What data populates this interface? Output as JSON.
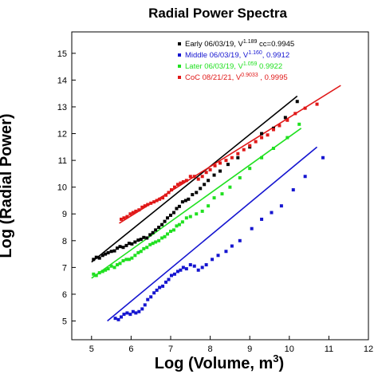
{
  "chart_data": {
    "type": "scatter",
    "title": "Radial Power Spectra",
    "xlabel": "Log (Volume, m",
    "xlabel_sup": "3",
    "xlabel_end": ")",
    "ylabel": "Log (Radial Power)",
    "xlim": [
      4.5,
      12
    ],
    "ylim": [
      4.3,
      15.8
    ],
    "xticks": [
      5,
      6,
      7,
      8,
      9,
      10,
      11,
      12
    ],
    "yticks": [
      5,
      6,
      7,
      8,
      9,
      10,
      11,
      12,
      13,
      14,
      15
    ],
    "grid": false,
    "legend_position": "top-right",
    "series": [
      {
        "name": "Early 06/03/19, V",
        "exponent": "1.189",
        "stat": "  cc=0.9945",
        "color": "#000000",
        "fit": [
          [
            5.0,
            7.2
          ],
          [
            10.2,
            13.4
          ]
        ],
        "points": [
          [
            5.05,
            7.3
          ],
          [
            5.12,
            7.38
          ],
          [
            5.2,
            7.35
          ],
          [
            5.28,
            7.45
          ],
          [
            5.35,
            7.5
          ],
          [
            5.42,
            7.55
          ],
          [
            5.5,
            7.6
          ],
          [
            5.58,
            7.62
          ],
          [
            5.65,
            7.72
          ],
          [
            5.72,
            7.78
          ],
          [
            5.8,
            7.75
          ],
          [
            5.88,
            7.82
          ],
          [
            5.95,
            7.9
          ],
          [
            6.02,
            7.88
          ],
          [
            6.1,
            7.95
          ],
          [
            6.18,
            8.02
          ],
          [
            6.25,
            8.05
          ],
          [
            6.32,
            8.12
          ],
          [
            6.4,
            8.1
          ],
          [
            6.48,
            8.22
          ],
          [
            6.55,
            8.3
          ],
          [
            6.62,
            8.4
          ],
          [
            6.7,
            8.5
          ],
          [
            6.78,
            8.6
          ],
          [
            6.85,
            8.72
          ],
          [
            6.92,
            8.85
          ],
          [
            7.0,
            8.95
          ],
          [
            7.08,
            9.05
          ],
          [
            7.15,
            9.2
          ],
          [
            7.22,
            9.28
          ],
          [
            7.3,
            9.45
          ],
          [
            7.38,
            9.5
          ],
          [
            7.45,
            9.55
          ],
          [
            7.55,
            9.72
          ],
          [
            7.65,
            9.8
          ],
          [
            7.75,
            9.95
          ],
          [
            7.85,
            10.1
          ],
          [
            7.95,
            10.25
          ],
          [
            8.1,
            10.45
          ],
          [
            8.25,
            10.6
          ],
          [
            8.45,
            10.85
          ],
          [
            8.7,
            11.1
          ],
          [
            9.0,
            11.5
          ],
          [
            9.3,
            12.0
          ],
          [
            9.6,
            12.2
          ],
          [
            9.9,
            12.6
          ],
          [
            10.2,
            13.2
          ]
        ]
      },
      {
        "name": "Middle 06/03/19, V",
        "exponent": "1.160",
        "stat": ", 0.9912",
        "color": "#1515d0",
        "fit": [
          [
            5.4,
            5.0
          ],
          [
            10.7,
            11.5
          ]
        ],
        "points": [
          [
            5.6,
            5.1
          ],
          [
            5.68,
            5.05
          ],
          [
            5.75,
            5.15
          ],
          [
            5.82,
            5.25
          ],
          [
            5.9,
            5.3
          ],
          [
            5.98,
            5.25
          ],
          [
            6.05,
            5.35
          ],
          [
            6.12,
            5.3
          ],
          [
            6.2,
            5.35
          ],
          [
            6.28,
            5.45
          ],
          [
            6.35,
            5.6
          ],
          [
            6.42,
            5.8
          ],
          [
            6.5,
            5.9
          ],
          [
            6.58,
            6.05
          ],
          [
            6.65,
            6.15
          ],
          [
            6.72,
            6.25
          ],
          [
            6.8,
            6.3
          ],
          [
            6.88,
            6.45
          ],
          [
            6.95,
            6.55
          ],
          [
            7.02,
            6.7
          ],
          [
            7.1,
            6.75
          ],
          [
            7.18,
            6.85
          ],
          [
            7.25,
            6.9
          ],
          [
            7.32,
            7.0
          ],
          [
            7.4,
            6.95
          ],
          [
            7.5,
            7.1
          ],
          [
            7.6,
            7.05
          ],
          [
            7.7,
            6.9
          ],
          [
            7.8,
            7.0
          ],
          [
            7.9,
            7.1
          ],
          [
            8.05,
            7.3
          ],
          [
            8.2,
            7.45
          ],
          [
            8.4,
            7.6
          ],
          [
            8.55,
            7.8
          ],
          [
            8.75,
            8.0
          ],
          [
            9.05,
            8.45
          ],
          [
            9.3,
            8.8
          ],
          [
            9.55,
            9.05
          ],
          [
            9.8,
            9.3
          ],
          [
            10.1,
            9.9
          ],
          [
            10.4,
            10.4
          ],
          [
            10.85,
            11.1
          ]
        ]
      },
      {
        "name": "Later 06/03/19, V",
        "exponent": "1.059",
        "stat": "  0.9922",
        "color": "#20e020",
        "fit": [
          [
            5.0,
            6.6
          ],
          [
            10.3,
            12.2
          ]
        ],
        "points": [
          [
            5.05,
            6.75
          ],
          [
            5.12,
            6.7
          ],
          [
            5.2,
            6.8
          ],
          [
            5.28,
            6.85
          ],
          [
            5.35,
            6.9
          ],
          [
            5.42,
            6.95
          ],
          [
            5.5,
            7.05
          ],
          [
            5.58,
            7.0
          ],
          [
            5.65,
            7.1
          ],
          [
            5.72,
            7.15
          ],
          [
            5.8,
            7.25
          ],
          [
            5.88,
            7.3
          ],
          [
            5.95,
            7.3
          ],
          [
            6.02,
            7.35
          ],
          [
            6.1,
            7.45
          ],
          [
            6.18,
            7.55
          ],
          [
            6.25,
            7.6
          ],
          [
            6.32,
            7.7
          ],
          [
            6.4,
            7.75
          ],
          [
            6.48,
            7.85
          ],
          [
            6.55,
            7.9
          ],
          [
            6.62,
            7.95
          ],
          [
            6.7,
            8.0
          ],
          [
            6.78,
            8.1
          ],
          [
            6.85,
            8.15
          ],
          [
            6.92,
            8.25
          ],
          [
            7.0,
            8.35
          ],
          [
            7.08,
            8.4
          ],
          [
            7.15,
            8.55
          ],
          [
            7.22,
            8.6
          ],
          [
            7.3,
            8.7
          ],
          [
            7.4,
            8.85
          ],
          [
            7.5,
            8.9
          ],
          [
            7.65,
            9.0
          ],
          [
            7.8,
            9.1
          ],
          [
            7.95,
            9.3
          ],
          [
            8.1,
            9.6
          ],
          [
            8.3,
            9.75
          ],
          [
            8.5,
            10.0
          ],
          [
            8.75,
            10.35
          ],
          [
            9.0,
            10.7
          ],
          [
            9.3,
            11.1
          ],
          [
            9.6,
            11.45
          ],
          [
            9.95,
            11.85
          ],
          [
            10.25,
            12.35
          ]
        ]
      },
      {
        "name": "CoC 08/21/21, V",
        "exponent": "0.9033",
        "stat": " , 0.9995",
        "color": "#e01818",
        "fit": [
          [
            5.7,
            8.65
          ],
          [
            11.3,
            13.8
          ]
        ],
        "points": [
          [
            5.75,
            8.8
          ],
          [
            5.82,
            8.85
          ],
          [
            5.9,
            8.9
          ],
          [
            5.98,
            9.0
          ],
          [
            6.05,
            9.05
          ],
          [
            6.12,
            9.1
          ],
          [
            6.2,
            9.15
          ],
          [
            6.28,
            9.25
          ],
          [
            6.35,
            9.3
          ],
          [
            6.42,
            9.35
          ],
          [
            6.5,
            9.4
          ],
          [
            6.58,
            9.45
          ],
          [
            6.65,
            9.5
          ],
          [
            6.72,
            9.55
          ],
          [
            6.8,
            9.6
          ],
          [
            6.88,
            9.7
          ],
          [
            6.95,
            9.8
          ],
          [
            7.02,
            9.9
          ],
          [
            7.1,
            10.0
          ],
          [
            7.18,
            10.1
          ],
          [
            7.25,
            10.15
          ],
          [
            7.32,
            10.2
          ],
          [
            7.4,
            10.25
          ],
          [
            7.5,
            10.4
          ],
          [
            7.6,
            10.4
          ],
          [
            7.7,
            10.3
          ],
          [
            7.8,
            10.4
          ],
          [
            7.9,
            10.55
          ],
          [
            8.0,
            10.65
          ],
          [
            8.12,
            10.8
          ],
          [
            8.25,
            10.9
          ],
          [
            8.4,
            11.0
          ],
          [
            8.55,
            11.1
          ],
          [
            8.7,
            11.25
          ],
          [
            8.85,
            11.4
          ],
          [
            9.0,
            11.55
          ],
          [
            9.15,
            11.7
          ],
          [
            9.3,
            11.85
          ],
          [
            9.45,
            11.95
          ],
          [
            9.6,
            12.15
          ],
          [
            9.75,
            12.3
          ],
          [
            9.95,
            12.5
          ],
          [
            10.15,
            12.75
          ],
          [
            10.4,
            12.95
          ],
          [
            10.7,
            13.1
          ]
        ]
      }
    ]
  }
}
